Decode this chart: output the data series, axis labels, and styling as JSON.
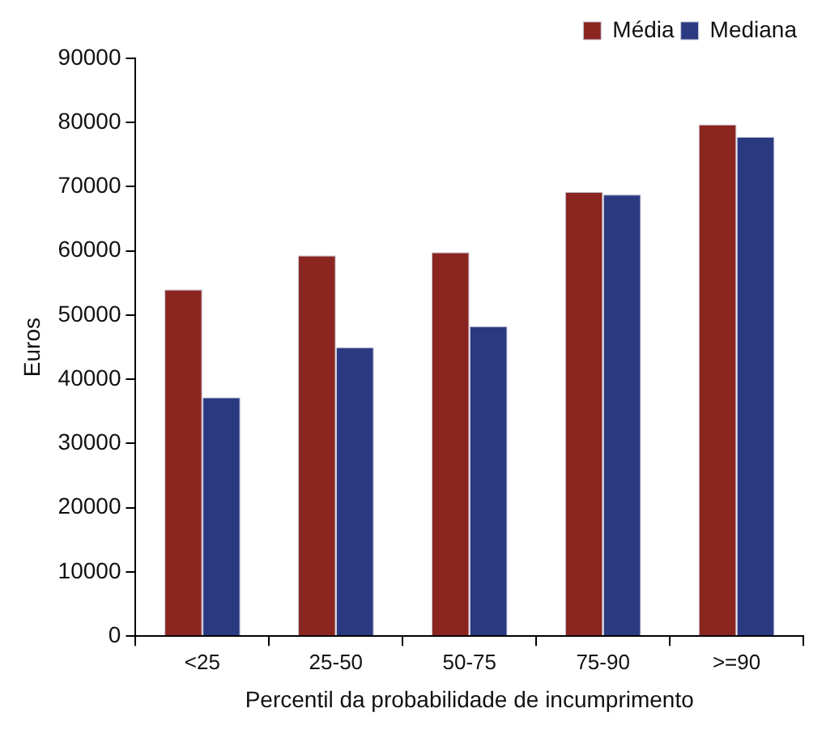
{
  "chart_data": {
    "type": "bar",
    "xlabel": "Percentil da probabilidade de incumprimento",
    "ylabel": "Euros",
    "categories": [
      "<25",
      "25-50",
      "50-75",
      "75-90",
      ">=90"
    ],
    "series": [
      {
        "name": "Média",
        "color": "#8b2520",
        "values": [
          54000,
          59300,
          59800,
          69200,
          79700
        ]
      },
      {
        "name": "Mediana",
        "color": "#2b3a80",
        "values": [
          37200,
          45000,
          48300,
          68800,
          77800
        ]
      }
    ],
    "ylim": [
      0,
      90000
    ],
    "yticks": [
      0,
      10000,
      20000,
      30000,
      40000,
      50000,
      60000,
      70000,
      80000,
      90000
    ],
    "grid": false,
    "legend": "top right"
  }
}
